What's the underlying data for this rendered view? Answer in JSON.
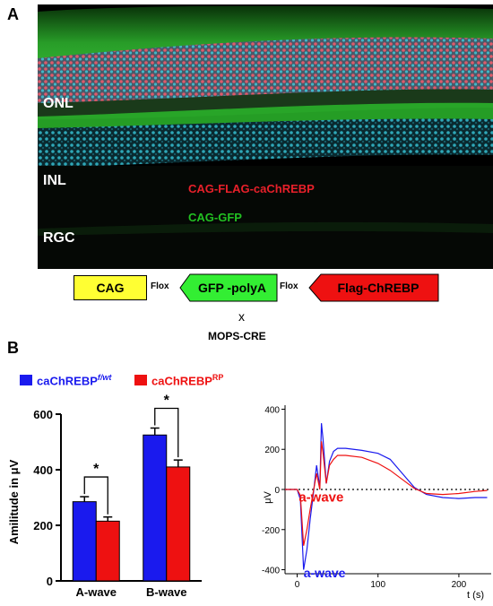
{
  "panel_a": {
    "letter": "A",
    "layers": [
      "ONL",
      "INL",
      "RGC"
    ],
    "transgenes": {
      "red": "CAG-FLAG-caChREBP",
      "green": "CAG-GFP"
    },
    "construct": {
      "cag": "CAG",
      "flox": "Flox",
      "gfp": "GFP -polyA",
      "flag": "Flag-ChREBP",
      "cross": "x",
      "cre": "MOPS-CRE"
    },
    "colors": {
      "red": "#e8202a",
      "green": "#22c022",
      "cag_fill": "#ffff33",
      "gfp_fill": "#33ee33",
      "flag_fill": "#ee1111"
    }
  },
  "panel_b": {
    "letter": "B",
    "legend": [
      {
        "base": "caChREBP",
        "sup": "f/wt",
        "color": "#1a1aee"
      },
      {
        "base": "caChREBP",
        "sup": "RP",
        "color": "#ee1111"
      }
    ]
  },
  "chart_data": [
    {
      "type": "bar",
      "ylabel": "Amilitude in μV",
      "ylim": [
        0,
        600
      ],
      "yticks": [
        0,
        200,
        400,
        600
      ],
      "categories": [
        "A-wave",
        "B-wave"
      ],
      "series": [
        {
          "name": "caChREBP f/wt",
          "color": "#1a1aee",
          "values": [
            285,
            525
          ],
          "errors": [
            18,
            25
          ]
        },
        {
          "name": "caChREBP RP",
          "color": "#ee1111",
          "values": [
            215,
            410
          ],
          "errors": [
            15,
            25
          ]
        }
      ],
      "significance": [
        "*",
        "*"
      ]
    },
    {
      "type": "line",
      "xlabel": "t (s)",
      "ylabel": "μV",
      "xlim": [
        -15,
        240
      ],
      "ylim": [
        -420,
        420
      ],
      "xticks": [
        0,
        100,
        200
      ],
      "yticks": [
        -400,
        -200,
        0,
        200,
        400
      ],
      "annotations": [
        {
          "text": "a-wave",
          "color": "#ee1111"
        },
        {
          "text": "a-wave",
          "color": "#1a1aee"
        }
      ],
      "series": [
        {
          "name": "caChREBP f/wt",
          "color": "#1a1aee",
          "x": [
            -15,
            0,
            4,
            8,
            12,
            16,
            20,
            24,
            28,
            30,
            32,
            36,
            40,
            45,
            50,
            60,
            80,
            100,
            115,
            130,
            145,
            160,
            180,
            200,
            220,
            235
          ],
          "y": [
            0,
            0,
            -50,
            -400,
            -300,
            -150,
            -20,
            120,
            10,
            330,
            250,
            30,
            140,
            190,
            205,
            205,
            195,
            180,
            150,
            80,
            10,
            -25,
            -40,
            -45,
            -40,
            -40
          ]
        },
        {
          "name": "caChREBP RP",
          "color": "#ee1111",
          "x": [
            -15,
            0,
            4,
            8,
            12,
            16,
            20,
            24,
            28,
            30,
            32,
            36,
            40,
            45,
            50,
            60,
            80,
            100,
            115,
            130,
            145,
            160,
            180,
            200,
            220,
            235
          ],
          "y": [
            0,
            0,
            -30,
            -280,
            -200,
            -100,
            -10,
            80,
            0,
            240,
            180,
            30,
            120,
            150,
            170,
            170,
            160,
            130,
            95,
            50,
            5,
            -20,
            -25,
            -20,
            -10,
            -5
          ]
        }
      ]
    }
  ]
}
